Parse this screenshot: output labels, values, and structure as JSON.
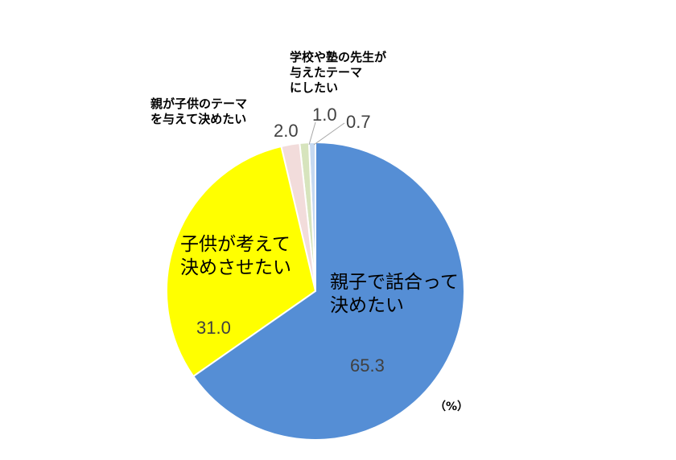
{
  "chart_data": {
    "type": "pie",
    "unit_label": "（%）",
    "start": "top",
    "direction": "clockwise",
    "slices": [
      {
        "label": "親子で話合って\n決めたい",
        "value": 65.3,
        "color": "#558ED5"
      },
      {
        "label": "子供が考えて\n決めさせたい",
        "value": 31.0,
        "color": "#FFFF00"
      },
      {
        "label": "親が子供のテーマ\nを与えて決めたい",
        "value": 2.0,
        "color": "#F2DCDB"
      },
      {
        "label": "学校や塾の先生が\n与えたテーマ\nにしたい",
        "value": 1.0,
        "color": "#D7E4BD"
      },
      {
        "label": "",
        "value": 0.7,
        "color": "#C6D9F1"
      }
    ]
  }
}
